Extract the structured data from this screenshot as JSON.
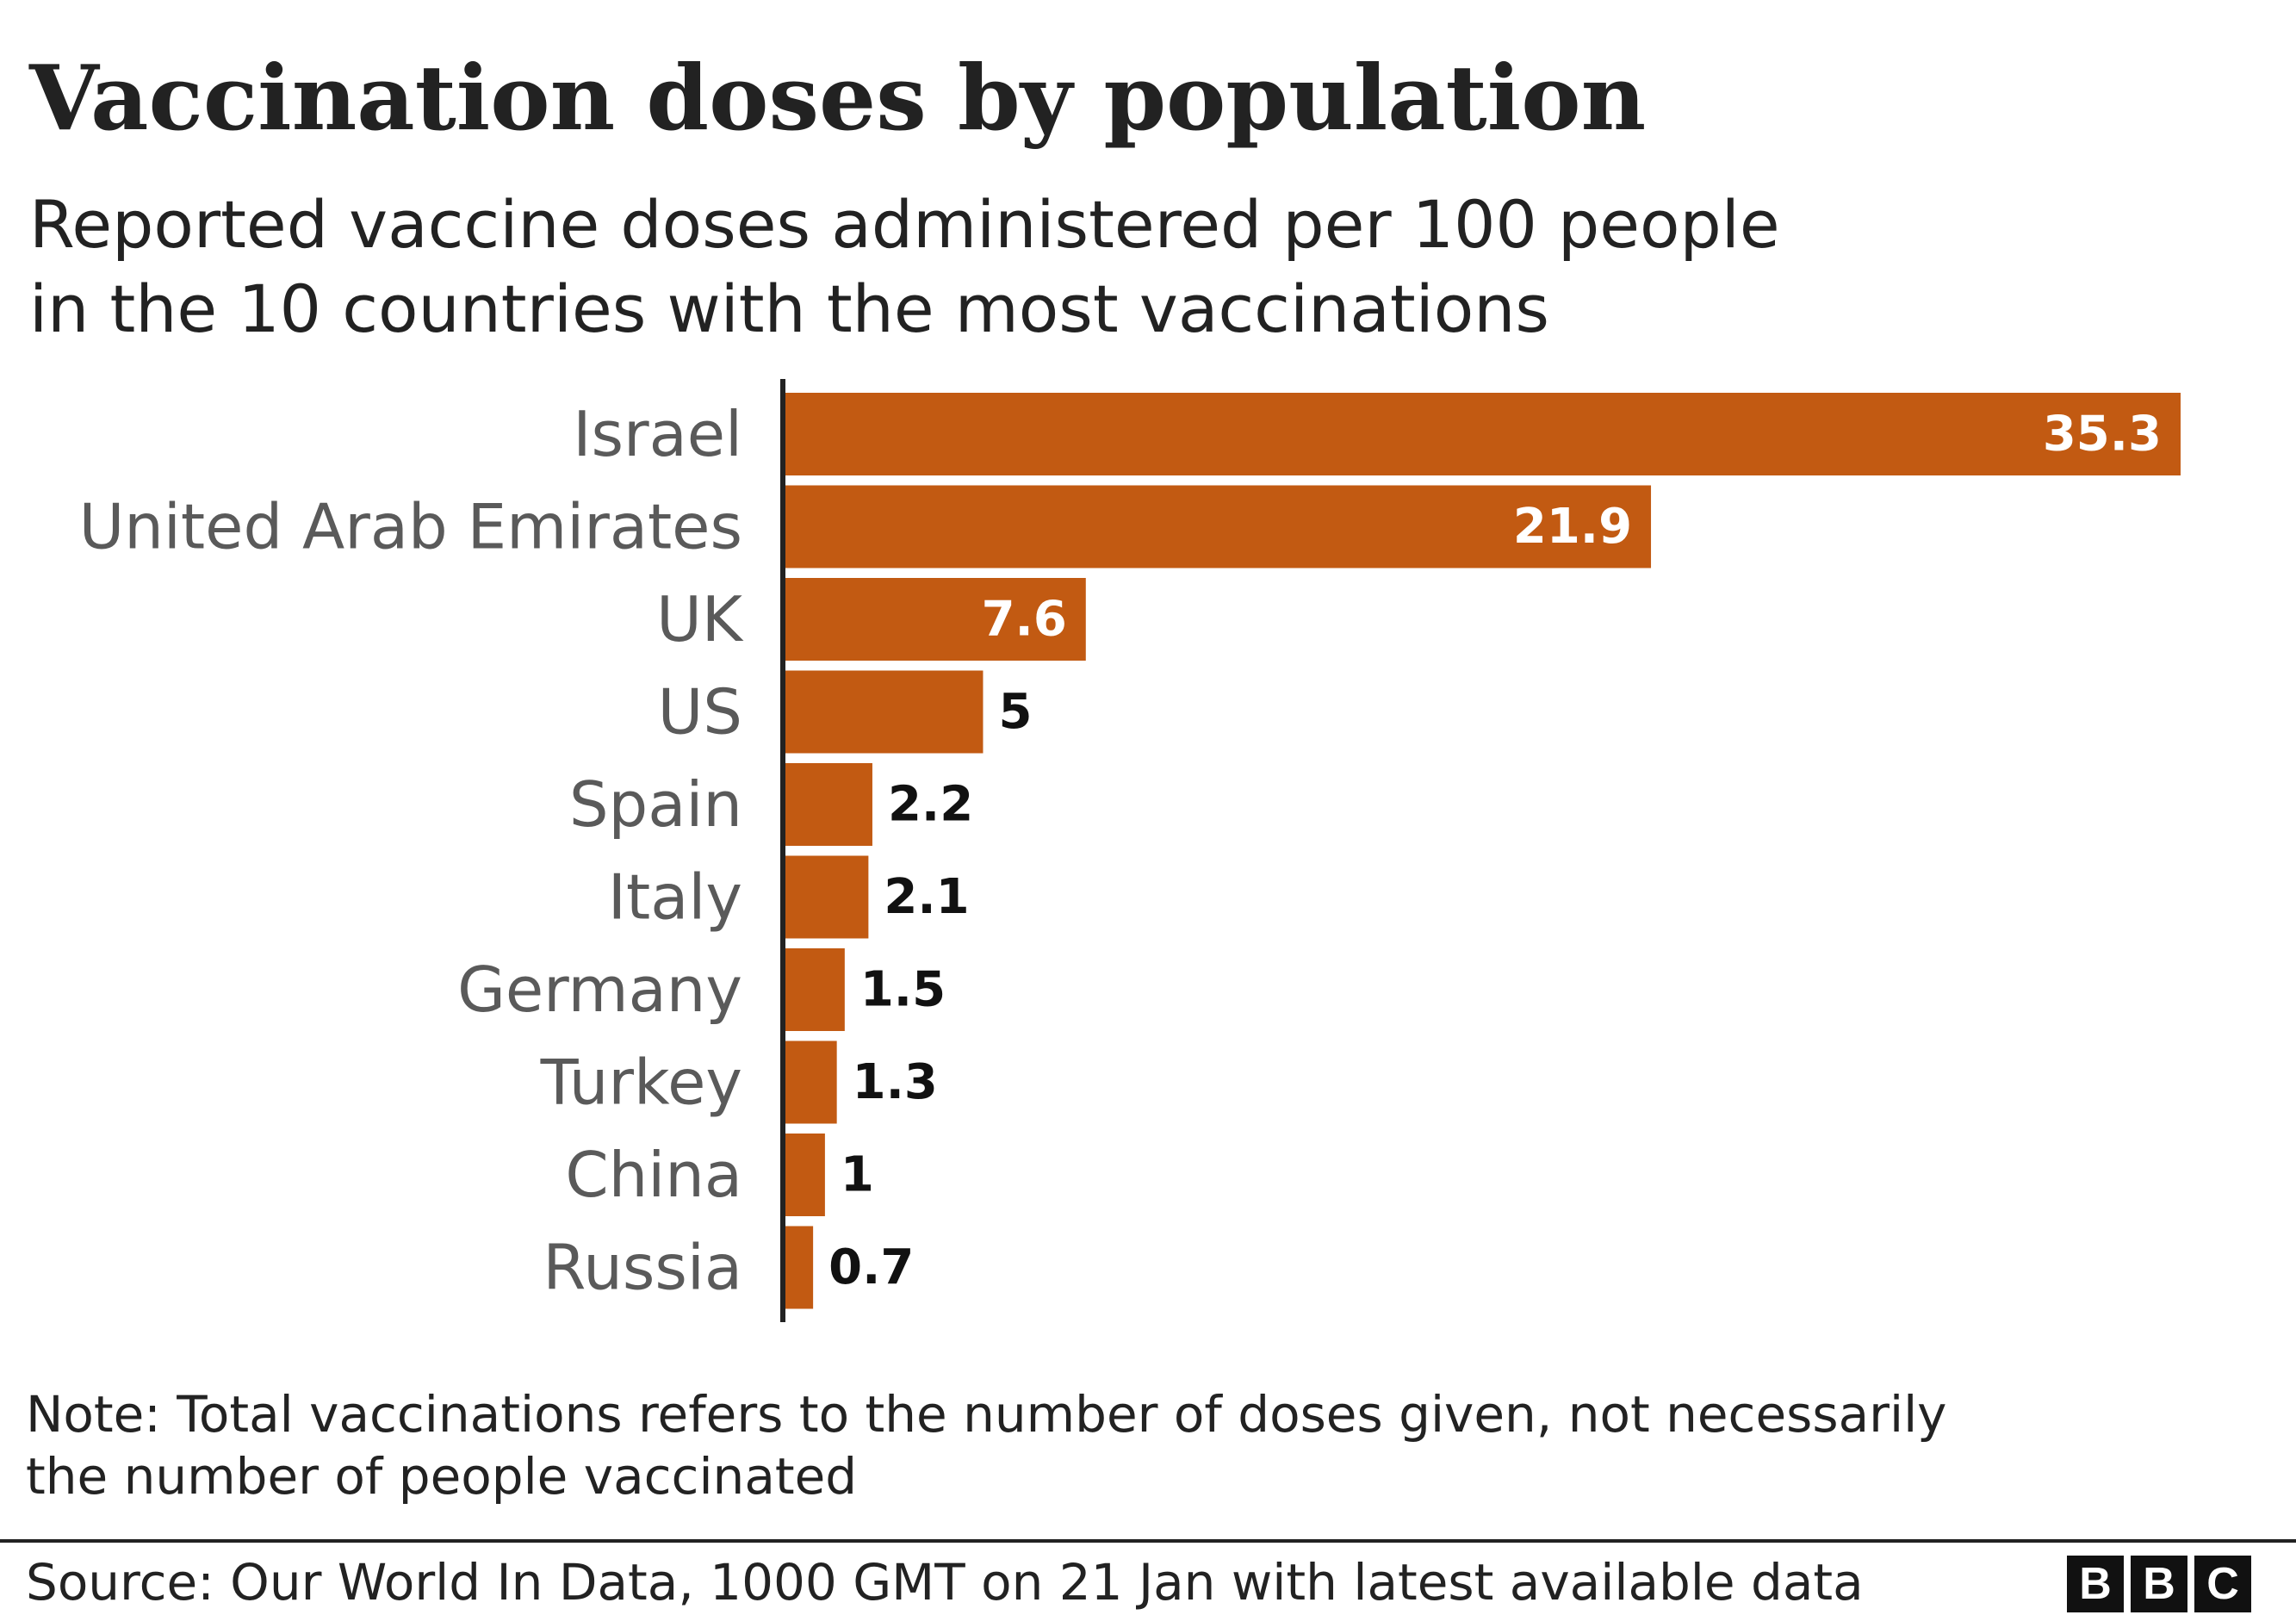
{
  "header": {
    "title": "Vaccination doses by population",
    "subtitle_line1": "Reported vaccine doses administered per 100 people",
    "subtitle_line2": "in the 10 countries with the most vaccinations"
  },
  "chart_data": {
    "type": "bar",
    "orientation": "horizontal",
    "categories": [
      "Israel",
      "United Arab Emirates",
      "UK",
      "US",
      "Spain",
      "Italy",
      "Germany",
      "Turkey",
      "China",
      "Russia"
    ],
    "values": [
      35.3,
      21.9,
      7.6,
      5,
      2.2,
      2.1,
      1.5,
      1.3,
      1,
      0.7
    ],
    "value_labels": [
      "35.3",
      "21.9",
      "7.6",
      "5",
      "2.2",
      "2.1",
      "1.5",
      "1.3",
      "1",
      "0.7"
    ],
    "xlim": [
      0,
      35.3
    ],
    "grid": false,
    "legend": false,
    "colors": {
      "bar": "#C25A12",
      "label_inside": "#ffffff",
      "label_outside": "#111111",
      "category_text": "#5a5a5a",
      "axis": "#222222"
    }
  },
  "footer": {
    "note_line1": "Note: Total vaccinations refers to the number of doses given, not necessarily",
    "note_line2": "the number of people vaccinated",
    "source": "Source: Our World In Data, 1000 GMT on 21 Jan with latest available data",
    "logo_letters": [
      "B",
      "B",
      "C"
    ]
  }
}
